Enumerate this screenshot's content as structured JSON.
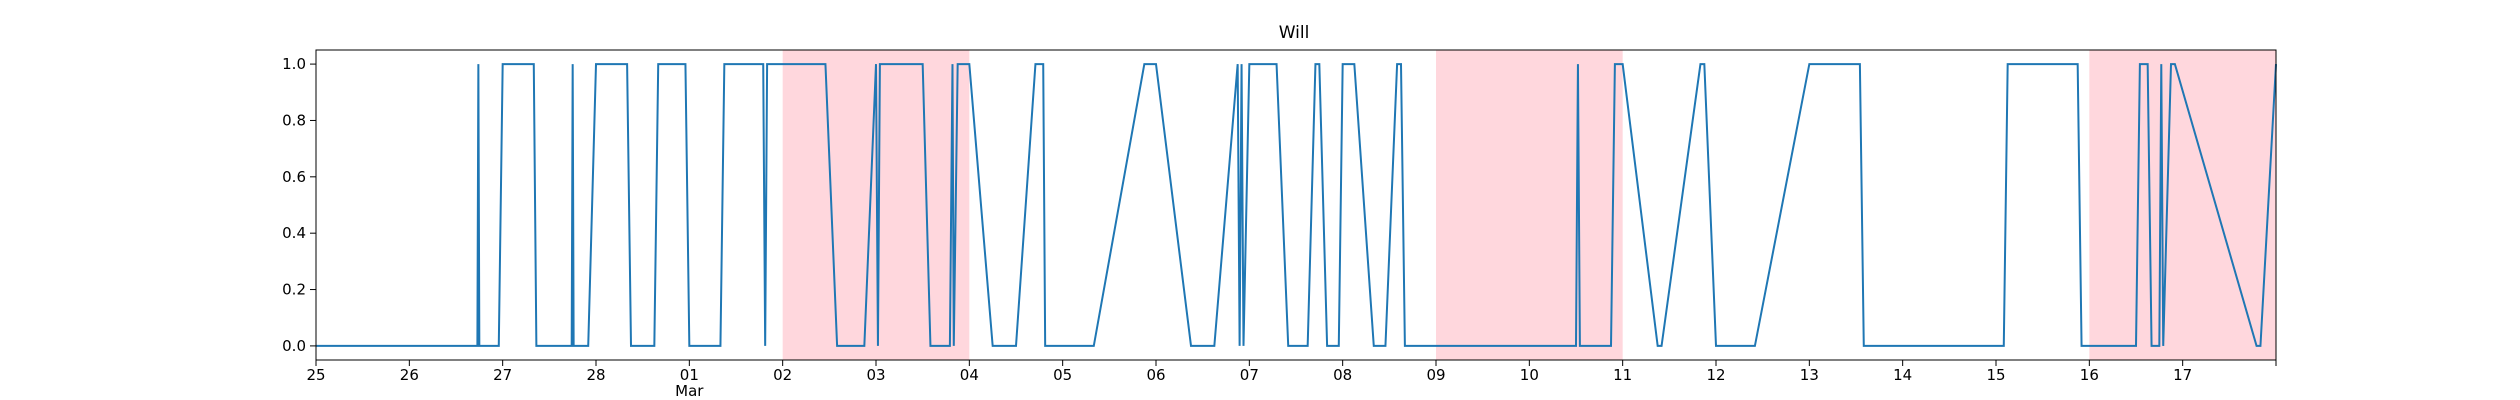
{
  "chart_data": {
    "type": "line",
    "title": "Will",
    "xlabel": "",
    "ylabel": "",
    "ylim": [
      -0.05,
      1.05
    ],
    "xlim": [
      "2025-02-25",
      "2025-03-18"
    ],
    "y_ticks": [
      "0.0",
      "0.2",
      "0.4",
      "0.6",
      "0.8",
      "1.0"
    ],
    "x_ticks": [
      {
        "date": "2025-02-25",
        "label": "25"
      },
      {
        "date": "2025-02-26",
        "label": "26"
      },
      {
        "date": "2025-02-27",
        "label": "27"
      },
      {
        "date": "2025-02-28",
        "label": "28"
      },
      {
        "date": "2025-03-01",
        "label": "01",
        "sublabel": "Mar"
      },
      {
        "date": "2025-03-02",
        "label": "02"
      },
      {
        "date": "2025-03-03",
        "label": "03"
      },
      {
        "date": "2025-03-04",
        "label": "04"
      },
      {
        "date": "2025-03-05",
        "label": "05"
      },
      {
        "date": "2025-03-06",
        "label": "06"
      },
      {
        "date": "2025-03-07",
        "label": "07"
      },
      {
        "date": "2025-03-08",
        "label": "08"
      },
      {
        "date": "2025-03-09",
        "label": "09"
      },
      {
        "date": "2025-03-10",
        "label": "10"
      },
      {
        "date": "2025-03-11",
        "label": "11"
      },
      {
        "date": "2025-03-12",
        "label": "12"
      },
      {
        "date": "2025-03-13",
        "label": "13"
      },
      {
        "date": "2025-03-14",
        "label": "14"
      },
      {
        "date": "2025-03-15",
        "label": "15"
      },
      {
        "date": "2025-03-16",
        "label": "16"
      },
      {
        "date": "2025-03-17",
        "label": "17"
      },
      {
        "date": "2025-03-18",
        "label": ""
      }
    ],
    "shaded_ranges": [
      {
        "start": "2025-03-02",
        "end": "2025-03-04"
      },
      {
        "start": "2025-03-09",
        "end": "2025-03-11"
      },
      {
        "start": "2025-03-16",
        "end": "2025-03-18"
      }
    ],
    "series": [
      {
        "color": "#1f77b4",
        "x": [
          "2025-02-25 00:00",
          "2025-02-26 17:30",
          "2025-02-26 17:45",
          "2025-02-26 18:00",
          "2025-02-26 18:15",
          "2025-02-26 23:00",
          "2025-02-27 00:00",
          "2025-02-27 08:00",
          "2025-02-27 08:40",
          "2025-02-27 09:00",
          "2025-02-27 17:45",
          "2025-02-27 18:00",
          "2025-02-27 18:15",
          "2025-02-27 22:00",
          "2025-02-28 00:00",
          "2025-02-28 08:00",
          "2025-02-28 09:00",
          "2025-02-28 15:00",
          "2025-02-28 16:00",
          "2025-02-28 23:00",
          "2025-03-01 00:00",
          "2025-03-01 08:00",
          "2025-03-01 09:00",
          "2025-03-01 19:00",
          "2025-03-01 19:30",
          "2025-03-01 20:00",
          "2025-03-02 11:00",
          "2025-03-02 14:00",
          "2025-03-02 21:00",
          "2025-03-03 00:00",
          "2025-03-03 00:30",
          "2025-03-03 01:00",
          "2025-03-03 12:00",
          "2025-03-03 14:00",
          "2025-03-03 19:00",
          "2025-03-03 19:40",
          "2025-03-03 20:00",
          "2025-03-03 21:00",
          "2025-03-03 22:00",
          "2025-03-04 00:00",
          "2025-03-04 06:00",
          "2025-03-04 12:00",
          "2025-03-04 17:00",
          "2025-03-04 19:00",
          "2025-03-04 19:30",
          "2025-03-05 08:00",
          "2025-03-05 21:00",
          "2025-03-06 00:00",
          "2025-03-06 09:00",
          "2025-03-06 15:00",
          "2025-03-06 21:00",
          "2025-03-06 21:30",
          "2025-03-06 22:00",
          "2025-03-06 22:30",
          "2025-03-07 00:00",
          "2025-03-07 07:00",
          "2025-03-07 10:00",
          "2025-03-07 15:00",
          "2025-03-07 17:00",
          "2025-03-07 18:00",
          "2025-03-07 20:00",
          "2025-03-07 23:00",
          "2025-03-08 00:00",
          "2025-03-08 03:00",
          "2025-03-08 08:00",
          "2025-03-08 11:00",
          "2025-03-08 14:00",
          "2025-03-08 15:00",
          "2025-03-08 16:00",
          "2025-03-08 17:00",
          "2025-03-08 18:00",
          "2025-03-10 12:00",
          "2025-03-10 12:30",
          "2025-03-10 13:00",
          "2025-03-10 21:00",
          "2025-03-10 22:00",
          "2025-03-11 00:00",
          "2025-03-11 09:00",
          "2025-03-11 10:00",
          "2025-03-11 20:00",
          "2025-03-11 21:00",
          "2025-03-12 00:00",
          "2025-03-12 08:00",
          "2025-03-12 10:00",
          "2025-03-13 00:00",
          "2025-03-13 13:00",
          "2025-03-13 14:00",
          "2025-03-15 02:00",
          "2025-03-15 03:00",
          "2025-03-15 21:00",
          "2025-03-15 22:00",
          "2025-03-16 12:00",
          "2025-03-16 13:00",
          "2025-03-16 15:00",
          "2025-03-16 16:00",
          "2025-03-16 18:00",
          "2025-03-16 18:30",
          "2025-03-16 19:00",
          "2025-03-16 21:00",
          "2025-03-16 22:00",
          "2025-03-17 19:00",
          "2025-03-17 20:00",
          "2025-03-18 00:00"
        ],
        "y": [
          0,
          0,
          1,
          0,
          0,
          0,
          1,
          1,
          0,
          0,
          0,
          1,
          0,
          0,
          1,
          1,
          0,
          0,
          1,
          1,
          0,
          0,
          1,
          1,
          0,
          1,
          1,
          0,
          0,
          1,
          0,
          1,
          1,
          0,
          0,
          1,
          0,
          1,
          1,
          1,
          0,
          0,
          1,
          1,
          0,
          0,
          1,
          1,
          0,
          0,
          1,
          0,
          1,
          0,
          1,
          1,
          0,
          0,
          1,
          1,
          0,
          0,
          1,
          1,
          0,
          0,
          1,
          1,
          0,
          0,
          0,
          0,
          1,
          0,
          0,
          1,
          1,
          0,
          0,
          1,
          1,
          0,
          0,
          0,
          1,
          1,
          0,
          0,
          1,
          1,
          0,
          0,
          1,
          1,
          0,
          0,
          1,
          0,
          1,
          1,
          0,
          0,
          1
        ]
      }
    ]
  }
}
